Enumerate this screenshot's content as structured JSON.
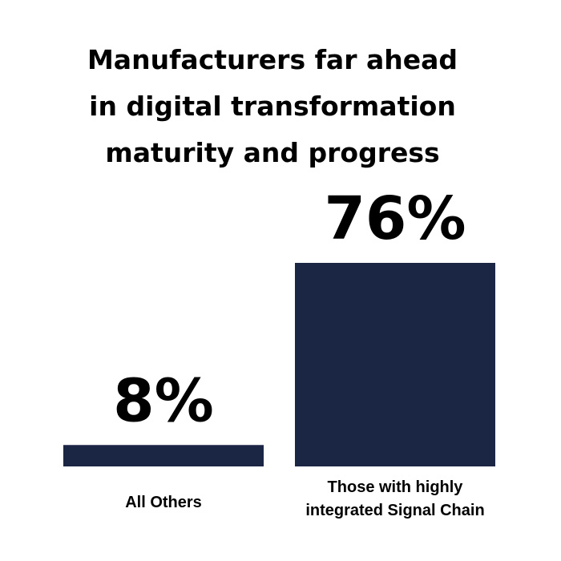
{
  "chart_data": {
    "type": "bar",
    "title_lines": [
      "Manufacturers far ahead",
      "in digital transformation",
      "maturity and progress"
    ],
    "categories": [
      [
        "All Others"
      ],
      [
        "Those with highly",
        "integrated Signal Chain"
      ]
    ],
    "values": [
      8,
      76
    ],
    "value_labels": [
      "8%",
      "76%"
    ],
    "bar_color": "#1b2644",
    "ylim": [
      0,
      76
    ],
    "grid": false,
    "legend": false
  }
}
